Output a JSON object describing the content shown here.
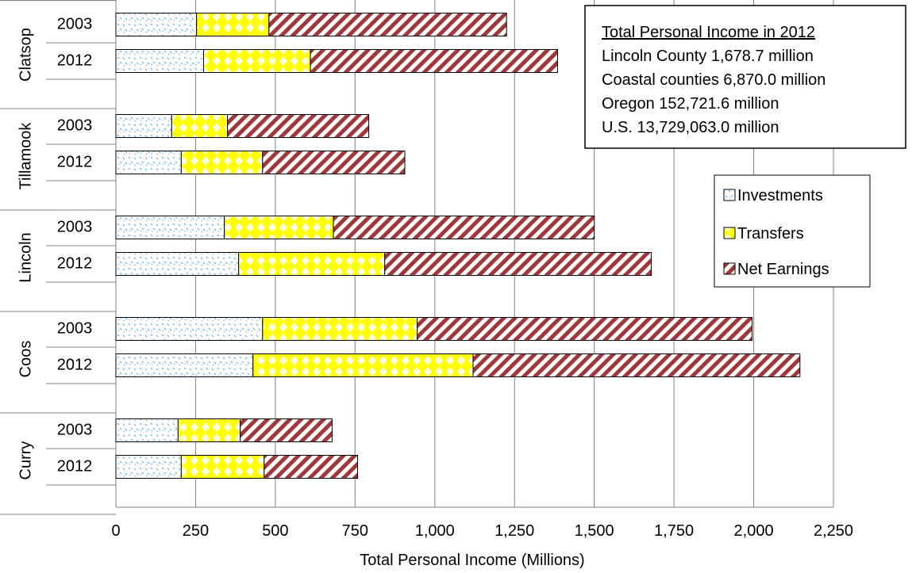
{
  "chart_data": {
    "type": "bar",
    "orientation": "horizontal",
    "stacked": true,
    "xlabel": "Total Personal Income (Millions)",
    "xlim": [
      0,
      2250
    ],
    "xticks": [
      0,
      250,
      500,
      750,
      1000,
      1250,
      1500,
      1750,
      2000,
      2250
    ],
    "xtick_labels": [
      "0",
      "250",
      "500",
      "750",
      "1,000",
      "1,250",
      "1,500",
      "1,750",
      "2,000",
      "2,250"
    ],
    "grid": "vertical",
    "legend_position": "right",
    "series": [
      {
        "name": "Investments",
        "color": "#4f9fd6",
        "pattern": "dots-light-blue"
      },
      {
        "name": "Transfers",
        "color": "#ffff00",
        "pattern": "yellow-diamonds"
      },
      {
        "name": "Net Earnings",
        "color": "#a0373a",
        "pattern": "red-diagonal-stripes"
      }
    ],
    "groups": [
      {
        "county": "Clatsop",
        "bars": [
          {
            "year": "2003",
            "values": [
              253,
              227,
              745
            ]
          },
          {
            "year": "2012",
            "values": [
              275,
              335,
              775
            ]
          }
        ]
      },
      {
        "county": "Tillamook",
        "bars": [
          {
            "year": "2003",
            "values": [
              175,
              175,
              443
            ]
          },
          {
            "year": "2012",
            "values": [
              205,
              255,
              446
            ]
          }
        ]
      },
      {
        "county": "Lincoln",
        "bars": [
          {
            "year": "2003",
            "values": [
              340,
              342,
              818
            ]
          },
          {
            "year": "2012",
            "values": [
              385,
              458,
              836
            ]
          }
        ]
      },
      {
        "county": "Coos",
        "bars": [
          {
            "year": "2003",
            "values": [
              460,
              485,
              1050
            ]
          },
          {
            "year": "2012",
            "values": [
              430,
              690,
              1025
            ]
          }
        ]
      },
      {
        "county": "Curry",
        "bars": [
          {
            "year": "2003",
            "values": [
              195,
              195,
              288
            ]
          },
          {
            "year": "2012",
            "values": [
              205,
              260,
              293
            ]
          }
        ]
      }
    ],
    "annotation": {
      "title": "Total Personal Income in 2012",
      "lines": [
        "Lincoln County 1,678.7 million",
        "Coastal counties 6,870.0 million",
        "Oregon 152,721.6 million",
        "U.S. 13,729,063.0 million"
      ]
    }
  }
}
